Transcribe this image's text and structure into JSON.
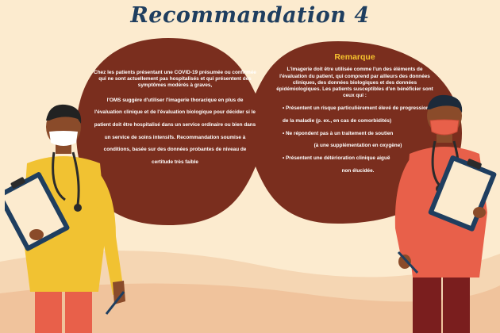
{
  "title": "Recommandation 4",
  "left_panel": {
    "intro": "Chez les patients présentant une COVID-19 présumée ou confirmée qui ne sont actuellement pas hospitalisés et qui présentent des symptômes modérés à graves,",
    "recommendation": "l'OMS suggère d'utiliser l'imagerie thoracique en plus de l'évaluation clinique et de l'évaluation biologique pour décider si le patient doit être hospitalisé dans un service ordinaire ou bien dans un service de soins intensifs. Recommandation soumise à conditions, basée sur des données probantes de niveau de certitude très faible"
  },
  "right_panel": {
    "heading": "Remarque",
    "body": "L'imagerie doit être utilisée comme l'un des éléments de l'évaluation du patient, qui comprend par ailleurs des données cliniques, des données biologiques et des données épidémiologiques. Les patients susceptibles d'en bénéficier sont ceux qui :",
    "bullet_1": "• Présentent un risque particulièrement élevé de progression de la maladie (p. ex., en cas de comorbidités)",
    "bullet_2a": "• Ne répondent pas à un traitement de soutien",
    "bullet_2b": "(à une supplémentation en oxygène)",
    "bullet_3a": "• Présentent une détérioration clinique aiguë",
    "bullet_3b": "non élucidée."
  },
  "colors": {
    "background": "#fcebcf",
    "panel": "#7a2e1e",
    "title": "#1f3e5f",
    "heading_accent": "#f7c22e",
    "left_scrub": "#f1c232",
    "right_scrub": "#e8604a"
  },
  "icons": {
    "left_figure": "doctor-with-clipboard-icon",
    "right_figure": "doctor-with-clipboard-icon"
  }
}
